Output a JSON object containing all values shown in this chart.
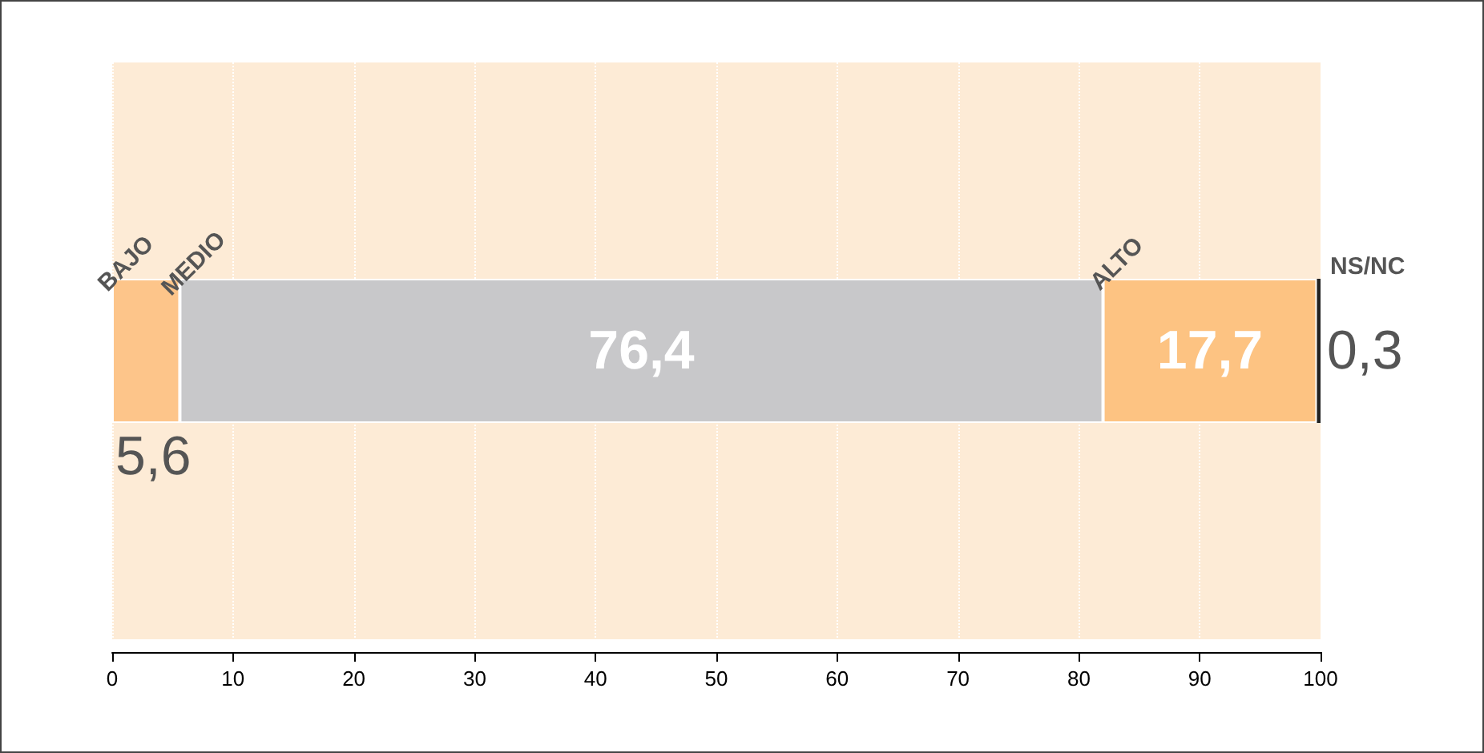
{
  "chart_data": {
    "type": "bar",
    "orientation": "horizontal",
    "stacked": true,
    "categories": [
      null
    ],
    "series": [
      {
        "name": "BAJO",
        "color": "#fdc58a",
        "values": [
          5.6
        ],
        "value_labels": [
          "5,6"
        ]
      },
      {
        "name": "MEDIO",
        "color": "#c8c8ca",
        "values": [
          76.4
        ],
        "value_labels": [
          "76,4"
        ]
      },
      {
        "name": "ALTO",
        "color": "#fdc382",
        "values": [
          17.7
        ],
        "value_labels": [
          "17,7"
        ]
      },
      {
        "name": "NS/NC",
        "color": "#222222",
        "values": [
          0.3
        ],
        "value_labels": [
          "0,3"
        ]
      }
    ],
    "xlim": [
      0,
      100
    ],
    "xticks": [
      0,
      10,
      20,
      30,
      40,
      50,
      60,
      70,
      80,
      90,
      100
    ],
    "bands": [
      {
        "axis": "x",
        "from": 0,
        "to": 100,
        "color": "#fdebd6"
      }
    ],
    "grid": "x",
    "tick_labels": "x"
  }
}
